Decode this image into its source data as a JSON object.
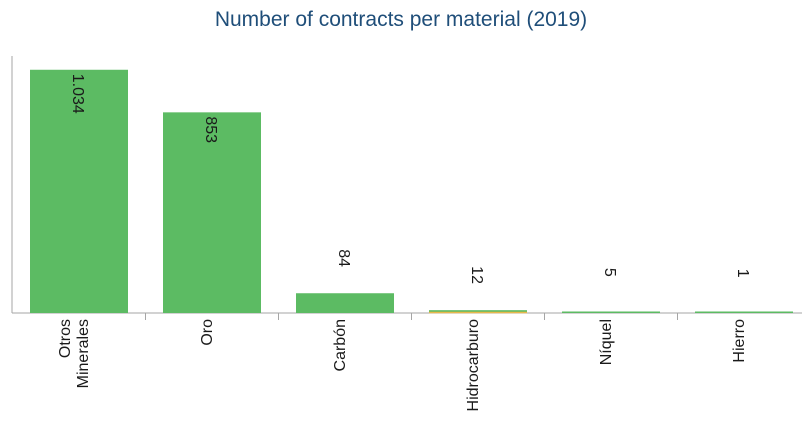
{
  "title": "Number of contracts per material (2019)",
  "chart_data": {
    "type": "bar",
    "title": "Number of contracts per material (2019)",
    "categories": [
      [
        "Otros",
        "Minerales"
      ],
      [
        "Oro"
      ],
      [
        "Carbón"
      ],
      [
        "Hidrocarburo"
      ],
      [
        "Níquel"
      ],
      [
        "Hierro"
      ]
    ],
    "values": [
      1034,
      853,
      84,
      12,
      5,
      1
    ],
    "data_labels": [
      "1.034",
      "853",
      "84",
      "12",
      "5",
      "1"
    ],
    "ylim": [
      0,
      1050
    ],
    "xlabel": "",
    "ylabel": "",
    "grid": false,
    "legend": "none",
    "colors": {
      "bar": "#5cbb63",
      "axis": "#a6a6a6",
      "accent_line": "#e8b84a"
    }
  }
}
